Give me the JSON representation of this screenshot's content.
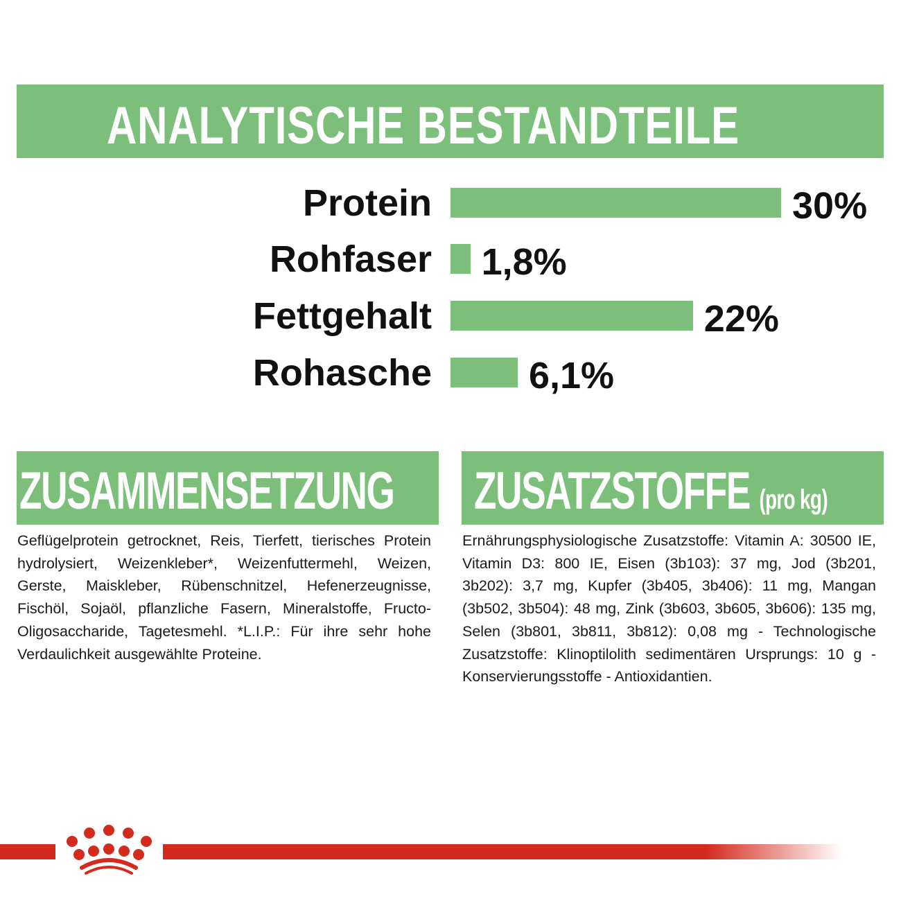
{
  "title": "ANALYTISCHE BESTANDTEILE",
  "chart_data": {
    "type": "bar",
    "orientation": "horizontal",
    "categories": [
      "Protein",
      "Rohfaser",
      "Fettgehalt",
      "Rohasche"
    ],
    "values": [
      30,
      1.8,
      22,
      6.1
    ],
    "value_labels": [
      "30%",
      "1,8%",
      "22%",
      "6,1%"
    ],
    "unit": "%",
    "bar_color": "#7bbf7b",
    "grid": false
  },
  "composition": {
    "heading": "ZUSAMMENSETZUNG",
    "text": "Geflügelprotein getrocknet, Reis, Tierfett, tierisches Protein hydrolysiert, Weizenkleber*, Weizenfuttermehl, Weizen, Gerste, Maiskleber, Rübenschnitzel, Hefenerzeugnisse, Fischöl, Sojaöl, pflanzliche Fasern, Mineralstoffe, Fructo-Oligosaccharide, Tagetesmehl. *L.I.P.: Für ihre sehr hohe Verdaulichkeit ausgewählte Proteine."
  },
  "additives": {
    "heading": "ZUSATZSTOFFE",
    "heading_suffix": "(pro kg)",
    "text": "Ernährungsphysiologische Zusatzstoffe: Vitamin A: 30500 IE, Vitamin D3: 800 IE, Eisen (3b103): 37 mg, Jod (3b201, 3b202): 3,7 mg, Kupfer (3b405, 3b406): 11 mg, Mangan (3b502, 3b504): 48 mg, Zink (3b603, 3b605, 3b606): 135 mg, Selen (3b801, 3b811, 3b812): 0,08 mg - Technologische Zusatzstoffe: Klinoptilolith sedimentären Ursprungs: 10 g - Konservierungsstoffe - Antioxidantien."
  },
  "colors": {
    "green": "#7bbf7b",
    "brand_red": "#d52b1e"
  },
  "logo": {
    "icon": "royal-canin-crown-icon"
  }
}
